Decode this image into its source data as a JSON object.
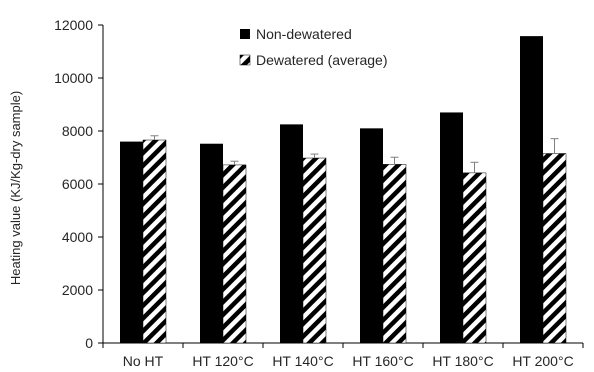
{
  "chart_data": {
    "type": "bar",
    "title": "",
    "xlabel": "",
    "ylabel": "Heating value (KJ/Kg-dry sample)",
    "ylim": [
      0,
      12000
    ],
    "yticks": [
      0,
      2000,
      4000,
      6000,
      8000,
      10000,
      12000
    ],
    "grid": false,
    "legend_position": "top-center",
    "categories": [
      "No HT",
      "HT 120°C",
      "HT 140°C",
      "HT 160°C",
      "HT 180°C",
      "HT 200°C"
    ],
    "series": [
      {
        "name": "Non-dewatered",
        "fill": "solid",
        "color": "#000000",
        "values": [
          7600,
          7520,
          8250,
          8100,
          8700,
          11580
        ]
      },
      {
        "name": "Dewatered (average)",
        "fill": "diagonal-hatch",
        "color": "#000000",
        "values": [
          7660,
          6720,
          6980,
          6740,
          6420,
          7150
        ],
        "error": [
          160,
          140,
          150,
          270,
          400,
          560
        ]
      }
    ]
  }
}
